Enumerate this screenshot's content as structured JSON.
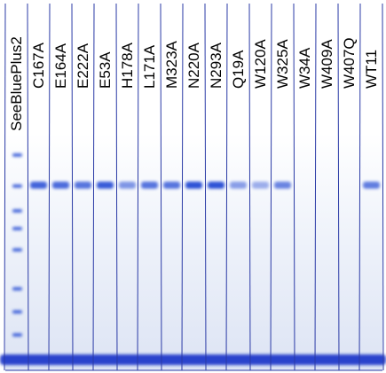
{
  "gel": {
    "background_color": "#e9eef8",
    "band_color": "#2f52d6",
    "dye_front_color": "#1433c8",
    "divider_color": "#2a3aa6"
  },
  "lanes": [
    {
      "label": "SeeBluePlus2",
      "type": "ladder",
      "band": 0
    },
    {
      "label": "C167A",
      "band": 0.9
    },
    {
      "label": "E164A",
      "band": 0.85
    },
    {
      "label": "E222A",
      "band": 0.8
    },
    {
      "label": "E53A",
      "band": 0.95
    },
    {
      "label": "H178A",
      "band": 0.6
    },
    {
      "label": "L171A",
      "band": 0.8
    },
    {
      "label": "M323A",
      "band": 0.8
    },
    {
      "label": "N220A",
      "band": 1.0
    },
    {
      "label": "N293A",
      "band": 1.0
    },
    {
      "label": "Q19A",
      "band": 0.55
    },
    {
      "label": "W120A",
      "band": 0.45
    },
    {
      "label": "W325A",
      "band": 0.7
    },
    {
      "label": "W34A",
      "band": 0
    },
    {
      "label": "W409A",
      "band": 0
    },
    {
      "label": "W407Q",
      "band": 0
    },
    {
      "label": "WT11",
      "band": 0.75
    }
  ]
}
